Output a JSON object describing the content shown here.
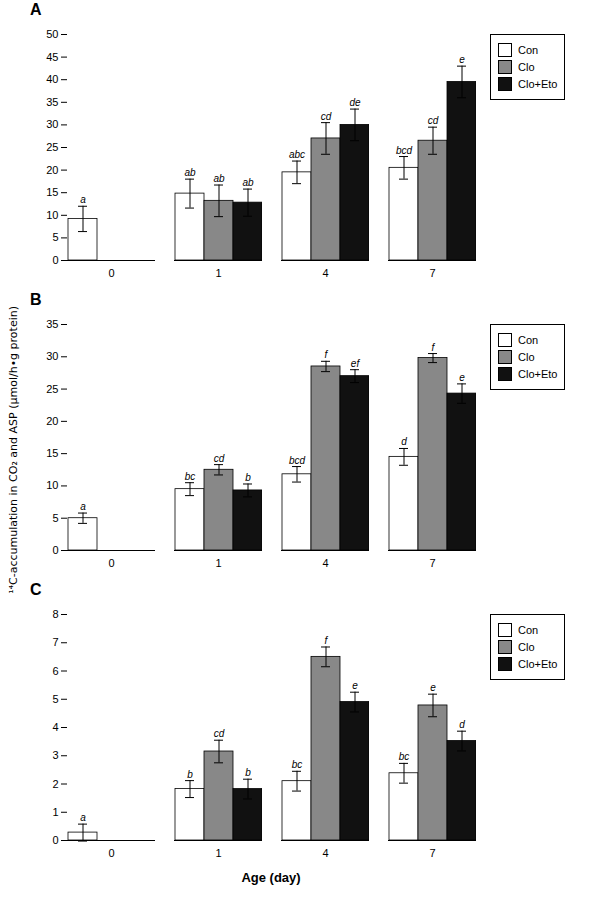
{
  "chart_data": [
    {
      "type": "bar",
      "title": "A",
      "categories": [
        "0",
        "1",
        "4",
        "7"
      ],
      "series": [
        {
          "name": "Con",
          "color": "white",
          "values": [
            9.2,
            14.8,
            19.5,
            20.5
          ],
          "errors": [
            2.8,
            3.2,
            2.5,
            2.5
          ],
          "letters": [
            "a",
            "ab",
            "abc",
            "bcd"
          ]
        },
        {
          "name": "Clo",
          "color": "#888888",
          "values": [
            null,
            13.2,
            27.0,
            26.5
          ],
          "errors": [
            null,
            3.5,
            3.5,
            3.0
          ],
          "letters": [
            null,
            "ab",
            "cd",
            "cd"
          ]
        },
        {
          "name": "Clo+Eto",
          "color": "#111111",
          "values": [
            null,
            12.8,
            30.0,
            39.5
          ],
          "errors": [
            null,
            3.0,
            3.5,
            3.5
          ],
          "letters": [
            null,
            "ab",
            "de",
            "e"
          ]
        }
      ],
      "ylim": [
        0,
        50
      ],
      "yticks": [
        0,
        5,
        10,
        15,
        20,
        25,
        30,
        35,
        40,
        45,
        50
      ],
      "legend": "right"
    },
    {
      "type": "bar",
      "title": "B",
      "ylabel": "¹⁴C-accumulation in CO₂ and ASP (μmol/h•g protein)",
      "categories": [
        "0",
        "1",
        "4",
        "7"
      ],
      "series": [
        {
          "name": "Con",
          "color": "white",
          "values": [
            5.0,
            9.5,
            11.8,
            14.5
          ],
          "errors": [
            0.8,
            1.0,
            1.2,
            1.3
          ],
          "letters": [
            "a",
            "bc",
            "bcd",
            "d"
          ]
        },
        {
          "name": "Clo",
          "color": "#888888",
          "values": [
            null,
            12.5,
            28.5,
            29.8
          ],
          "errors": [
            null,
            0.8,
            0.8,
            0.7
          ],
          "letters": [
            null,
            "cd",
            "f",
            "f"
          ]
        },
        {
          "name": "Clo+Eto",
          "color": "#111111",
          "values": [
            null,
            9.3,
            27.0,
            24.3
          ],
          "errors": [
            null,
            1.0,
            1.0,
            1.5
          ],
          "letters": [
            null,
            "b",
            "ef",
            "e"
          ]
        }
      ],
      "ylim": [
        0,
        35
      ],
      "yticks": [
        0,
        5,
        10,
        15,
        20,
        25,
        30,
        35
      ],
      "legend": "right"
    },
    {
      "type": "bar",
      "title": "C",
      "xlabel": "Age (day)",
      "categories": [
        "0",
        "1",
        "4",
        "7"
      ],
      "series": [
        {
          "name": "Con",
          "color": "white",
          "values": [
            0.28,
            1.82,
            2.1,
            2.38
          ],
          "errors": [
            0.3,
            0.3,
            0.35,
            0.35
          ],
          "letters": [
            "a",
            "b",
            "bc",
            "bc"
          ]
        },
        {
          "name": "Clo",
          "color": "#888888",
          "values": [
            null,
            3.15,
            6.5,
            4.78
          ],
          "errors": [
            null,
            0.4,
            0.35,
            0.4
          ],
          "letters": [
            null,
            "cd",
            "f",
            "e"
          ]
        },
        {
          "name": "Clo+Eto",
          "color": "#111111",
          "values": [
            null,
            1.82,
            4.9,
            3.52
          ],
          "errors": [
            null,
            0.35,
            0.35,
            0.35
          ],
          "letters": [
            null,
            "b",
            "e",
            "d"
          ]
        }
      ],
      "ylim": [
        0,
        8
      ],
      "yticks": [
        0,
        1,
        2,
        3,
        4,
        5,
        6,
        7,
        8
      ],
      "legend": "right"
    }
  ]
}
